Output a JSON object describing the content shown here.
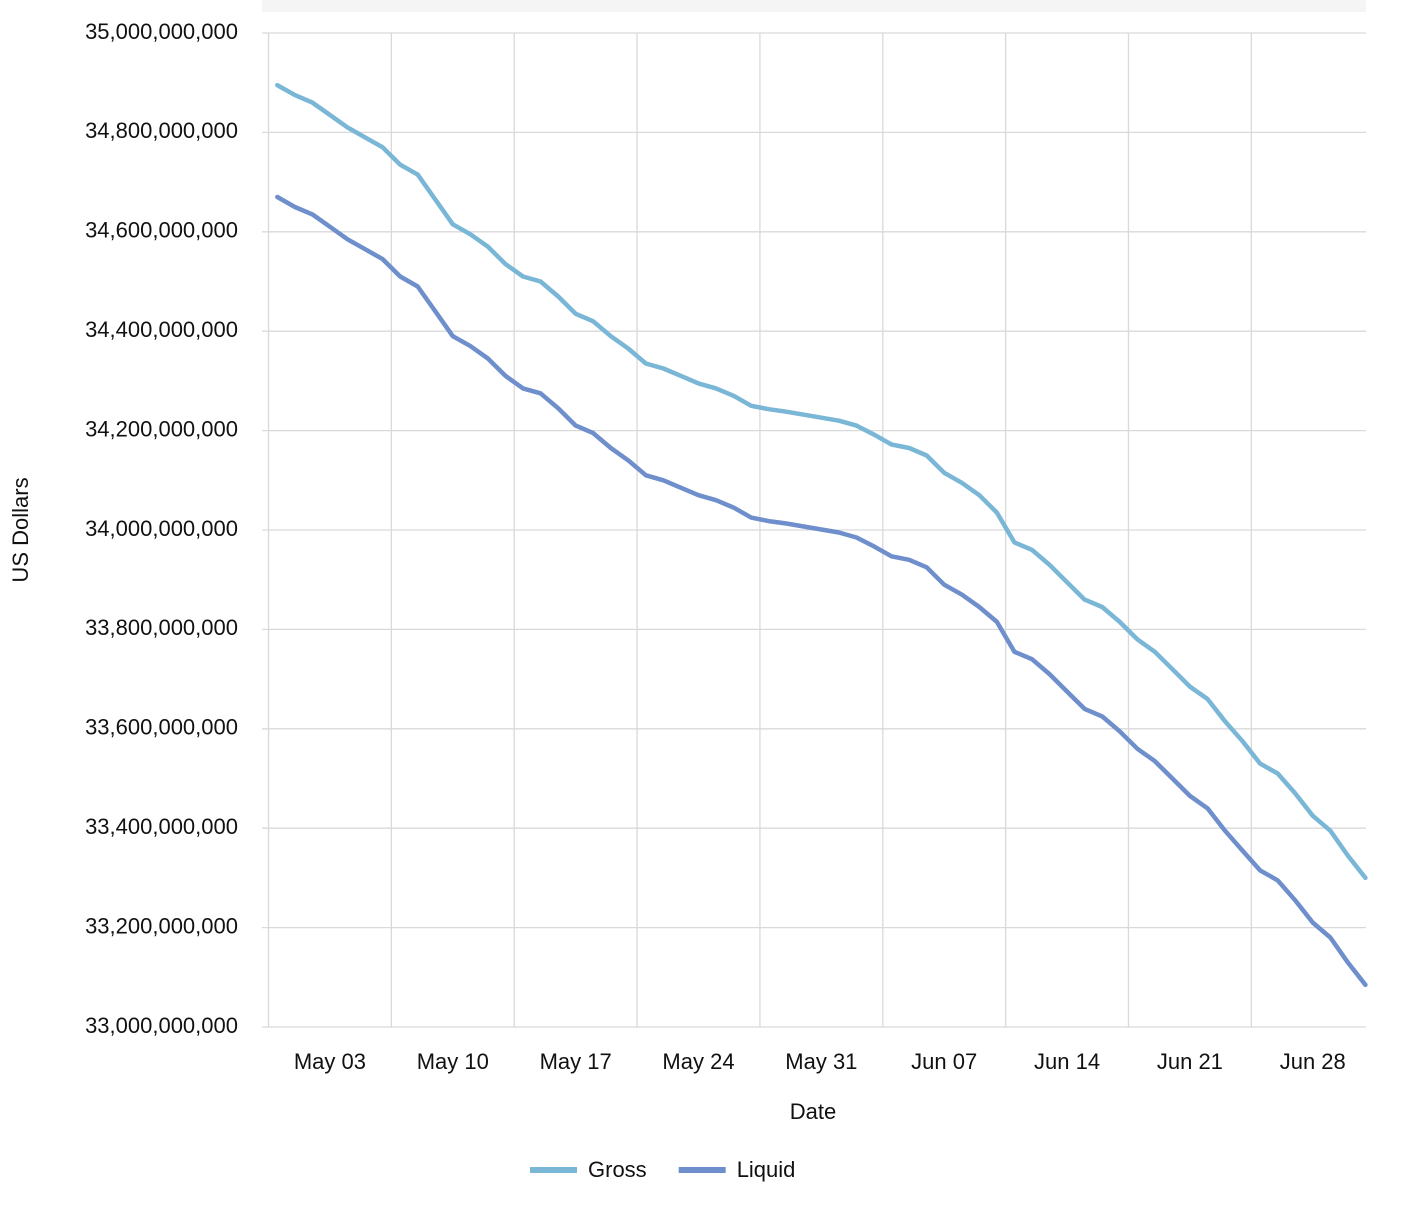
{
  "chart_data": {
    "type": "line",
    "x_label": "Date",
    "y_label": "US Dollars",
    "x": [
      "Apr 30",
      "May 01",
      "May 02",
      "May 03",
      "May 04",
      "May 05",
      "May 06",
      "May 07",
      "May 08",
      "May 09",
      "May 10",
      "May 11",
      "May 12",
      "May 13",
      "May 14",
      "May 15",
      "May 16",
      "May 17",
      "May 18",
      "May 19",
      "May 20",
      "May 21",
      "May 22",
      "May 23",
      "May 24",
      "May 25",
      "May 26",
      "May 27",
      "May 28",
      "May 29",
      "May 30",
      "May 31",
      "Jun 01",
      "Jun 02",
      "Jun 03",
      "Jun 04",
      "Jun 05",
      "Jun 06",
      "Jun 07",
      "Jun 08",
      "Jun 09",
      "Jun 10",
      "Jun 11",
      "Jun 12",
      "Jun 13",
      "Jun 14",
      "Jun 15",
      "Jun 16",
      "Jun 17",
      "Jun 18",
      "Jun 19",
      "Jun 20",
      "Jun 21",
      "Jun 22",
      "Jun 23",
      "Jun 24",
      "Jun 25",
      "Jun 26",
      "Jun 27",
      "Jun 28",
      "Jun 29",
      "Jun 30",
      "Jul 01"
    ],
    "series": [
      {
        "name": "Gross",
        "color": "#7ab6d6",
        "values": [
          34895000000,
          34875000000,
          34860000000,
          34835000000,
          34810000000,
          34790000000,
          34770000000,
          34735000000,
          34715000000,
          34665000000,
          34615000000,
          34595000000,
          34570000000,
          34535000000,
          34510000000,
          34500000000,
          34470000000,
          34435000000,
          34420000000,
          34390000000,
          34365000000,
          34335000000,
          34325000000,
          34310000000,
          34295000000,
          34285000000,
          34270000000,
          34250000000,
          34243000000,
          34238000000,
          34232000000,
          34226000000,
          34220000000,
          34210000000,
          34192000000,
          34172000000,
          34165000000,
          34150000000,
          34115000000,
          34095000000,
          34070000000,
          34035000000,
          33975000000,
          33960000000,
          33930000000,
          33895000000,
          33860000000,
          33845000000,
          33815000000,
          33780000000,
          33755000000,
          33720000000,
          33685000000,
          33660000000,
          33615000000,
          33575000000,
          33530000000,
          33510000000,
          33470000000,
          33425000000,
          33395000000,
          33345000000,
          33300000000
        ]
      },
      {
        "name": "Liquid",
        "color": "#6f8fcc",
        "values": [
          34670000000,
          34650000000,
          34635000000,
          34610000000,
          34585000000,
          34565000000,
          34545000000,
          34510000000,
          34490000000,
          34440000000,
          34390000000,
          34370000000,
          34345000000,
          34310000000,
          34285000000,
          34275000000,
          34245000000,
          34210000000,
          34195000000,
          34165000000,
          34140000000,
          34110000000,
          34100000000,
          34085000000,
          34070000000,
          34060000000,
          34045000000,
          34025000000,
          34018000000,
          34013000000,
          34007000000,
          34001000000,
          33995000000,
          33985000000,
          33967000000,
          33947000000,
          33940000000,
          33925000000,
          33890000000,
          33870000000,
          33845000000,
          33815000000,
          33755000000,
          33740000000,
          33710000000,
          33675000000,
          33640000000,
          33625000000,
          33595000000,
          33560000000,
          33535000000,
          33500000000,
          33465000000,
          33440000000,
          33395000000,
          33355000000,
          33315000000,
          33295000000,
          33255000000,
          33210000000,
          33180000000,
          33130000000,
          33085000000
        ]
      }
    ],
    "xticks": [
      "May 03",
      "May 10",
      "May 17",
      "May 24",
      "May 31",
      "Jun 07",
      "Jun 14",
      "Jun 21",
      "Jun 28"
    ],
    "ylim": [
      33000000000,
      35000000000
    ],
    "yticks": [
      {
        "value": 33000000000,
        "label": "33,000,000,000"
      },
      {
        "value": 33200000000,
        "label": "33,200,000,000"
      },
      {
        "value": 33400000000,
        "label": "33,400,000,000"
      },
      {
        "value": 33600000000,
        "label": "33,600,000,000"
      },
      {
        "value": 33800000000,
        "label": "33,800,000,000"
      },
      {
        "value": 34000000000,
        "label": "34,000,000,000"
      },
      {
        "value": 34200000000,
        "label": "34,200,000,000"
      },
      {
        "value": 34400000000,
        "label": "34,400,000,000"
      },
      {
        "value": 34600000000,
        "label": "34,600,000,000"
      },
      {
        "value": 34800000000,
        "label": "34,800,000,000"
      },
      {
        "value": 35000000000,
        "label": "35,000,000,000"
      }
    ],
    "grid": true,
    "legend": "bottom"
  }
}
